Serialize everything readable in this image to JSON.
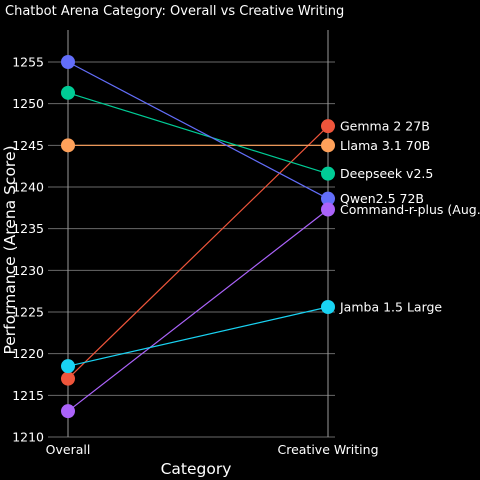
{
  "chart_data": {
    "type": "line",
    "title": "Chatbot Arena Category: Overall vs Creative Writing",
    "xlabel": "Category",
    "ylabel": "Performance (Arena Score)",
    "categories": [
      "Overall",
      "Creative Writing"
    ],
    "ylim": [
      1210,
      1258
    ],
    "yticks": [
      1210,
      1215,
      1220,
      1225,
      1230,
      1235,
      1240,
      1245,
      1250,
      1255
    ],
    "grid": true,
    "series": [
      {
        "name": "Gemma 2 27B",
        "values": [
          1217,
          1247.3
        ],
        "color": "#EF553B"
      },
      {
        "name": "Llama 3.1 70B",
        "values": [
          1245,
          1245
        ],
        "color": "#FFA15A"
      },
      {
        "name": "Deepseek v2.5",
        "values": [
          1251.3,
          1241.6
        ],
        "color": "#00CC96"
      },
      {
        "name": "Qwen2.5 72B",
        "values": [
          1255,
          1238.6
        ],
        "color": "#636EFA"
      },
      {
        "name": "Command-r-plus (Aug.)",
        "values": [
          1213.1,
          1237.3
        ],
        "color": "#AB63FA"
      },
      {
        "name": "Jamba 1.5 Large",
        "values": [
          1218.5,
          1225.6
        ],
        "color": "#19D3F3"
      }
    ]
  }
}
